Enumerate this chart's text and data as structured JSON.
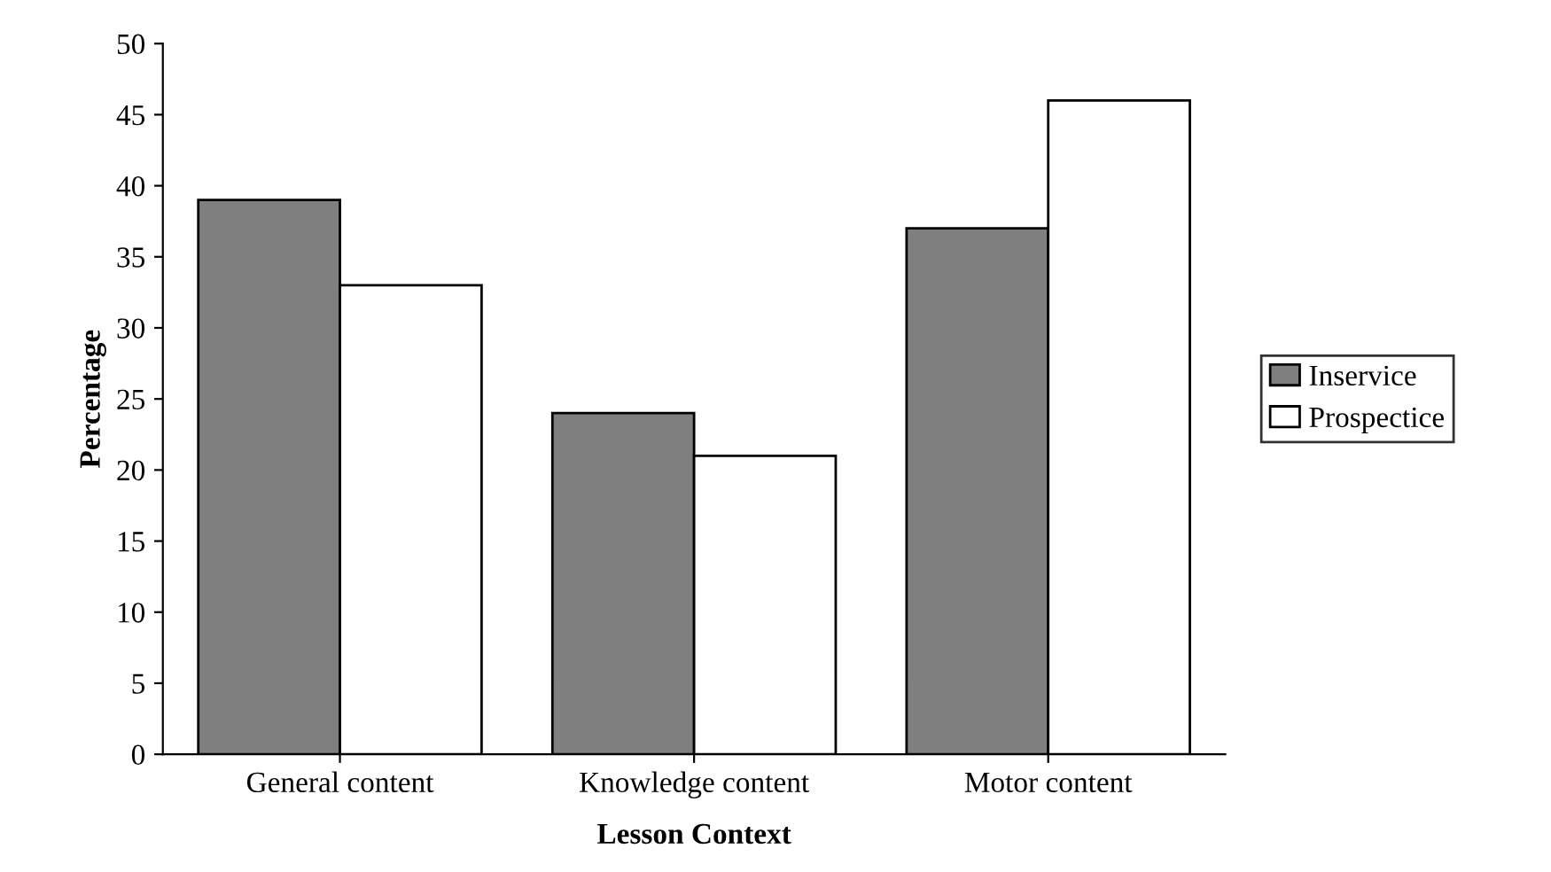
{
  "chart_data": {
    "type": "bar",
    "xlabel": "Lesson Context",
    "ylabel": "Percentage",
    "categories": [
      "General content",
      "Knowledge content",
      "Motor content"
    ],
    "series": [
      {
        "name": "Inservice",
        "color": "#7f7f7f",
        "values": [
          39,
          24,
          37
        ]
      },
      {
        "name": "Prospectice",
        "color": "#ffffff",
        "values": [
          33,
          21,
          46
        ]
      }
    ],
    "ylim": [
      0,
      50
    ],
    "yticks": [
      0,
      5,
      10,
      15,
      20,
      25,
      30,
      35,
      40,
      45,
      50
    ],
    "grid": false,
    "legend": "right"
  }
}
